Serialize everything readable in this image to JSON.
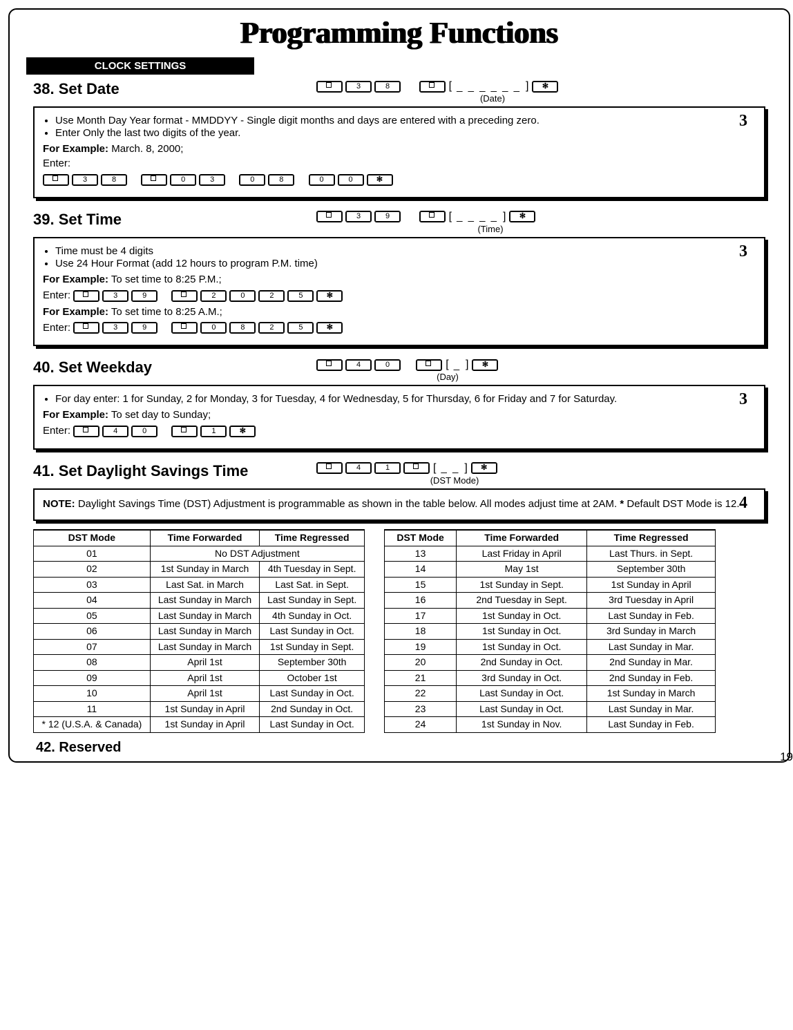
{
  "page": {
    "title": "Programming Functions",
    "section_bar": "CLOCK SETTINGS",
    "page_number": "19"
  },
  "fn38": {
    "title": "38. Set Date",
    "syntax_code": [
      "3",
      "8"
    ],
    "blanks": "_ _ _ _ _ _",
    "sub": "(Date)",
    "level": "3",
    "bullet1": "Use Month Day Year format - MMDDYY - Single digit months and days are entered with a preceding zero.",
    "bullet2": "Enter Only the last two digits of the year.",
    "ex_label": "For Example:",
    "ex_text": " March. 8, 2000;",
    "enter_word": "Enter:",
    "ex_seq": [
      [
        "3",
        "8"
      ],
      [
        "0",
        "3"
      ],
      [
        "0",
        "8"
      ],
      [
        "0",
        "0"
      ]
    ]
  },
  "fn39": {
    "title": "39. Set Time",
    "syntax_code": [
      "3",
      "9"
    ],
    "blanks": "_ _ _ _",
    "sub": "(Time)",
    "level": "3",
    "bullet1": "Time must be 4 digits",
    "bullet2": "Use 24 Hour Format (add 12 hours to program P.M. time)",
    "ex1_label": "For Example:",
    "ex1_text": "  To set time to 8:25 P.M.;",
    "ex1_seq": [
      "2",
      "0",
      "2",
      "5"
    ],
    "ex2_label": "For Example:",
    "ex2_text": "  To set time to 8:25 A.M.;",
    "ex2_seq": [
      "0",
      "8",
      "2",
      "5"
    ],
    "enter_word": "Enter:"
  },
  "fn40": {
    "title": "40. Set Weekday",
    "syntax_code": [
      "4",
      "0"
    ],
    "blanks": "_",
    "sub": "(Day)",
    "level": "3",
    "bullet1": "For day enter: 1 for Sunday, 2 for Monday, 3 for Tuesday, 4 for Wednesday, 5 for Thursday, 6 for Friday and  7 for Saturday.",
    "ex_label": "For Example:",
    "ex_text": "  To set day to Sunday;",
    "ex_seq": [
      "1"
    ],
    "enter_word": "Enter:"
  },
  "fn41": {
    "title": "41. Set Daylight Savings Time",
    "syntax_code": [
      "4",
      "1"
    ],
    "blanks": "_ _",
    "sub": "(DST Mode)",
    "level": "4",
    "note_label": "NOTE:",
    "note_text": " Daylight Savings Time (DST) Adjustment is programmable as shown in the table below. All modes adjust time at 2AM. ",
    "note_star": "*",
    "note_tail": " Default DST Mode is 12."
  },
  "dst_headers": {
    "c1": "DST Mode",
    "c2": "Time Forwarded",
    "c3": "Time Regressed"
  },
  "dst_left": [
    {
      "m": "01",
      "f": "No DST Adjustment",
      "r": "",
      "span": true
    },
    {
      "m": "02",
      "f": "1st Sunday in March",
      "r": "4th Tuesday in Sept."
    },
    {
      "m": "03",
      "f": "Last Sat. in March",
      "r": "Last Sat. in Sept."
    },
    {
      "m": "04",
      "f": "Last Sunday in March",
      "r": "Last Sunday in Sept."
    },
    {
      "m": "05",
      "f": "Last Sunday in March",
      "r": "4th Sunday in Oct."
    },
    {
      "m": "06",
      "f": "Last Sunday in March",
      "r": "Last Sunday in Oct."
    },
    {
      "m": "07",
      "f": "Last Sunday in March",
      "r": "1st Sunday in Sept."
    },
    {
      "m": "08",
      "f": "April 1st",
      "r": "September 30th"
    },
    {
      "m": "09",
      "f": "April 1st",
      "r": "October 1st"
    },
    {
      "m": "10",
      "f": "April 1st",
      "r": "Last Sunday in Oct."
    },
    {
      "m": "11",
      "f": "1st Sunday in April",
      "r": "2nd Sunday in Oct."
    },
    {
      "m": "* 12 (U.S.A. & Canada)",
      "f": "1st Sunday in April",
      "r": "Last Sunday in Oct."
    }
  ],
  "dst_right": [
    {
      "m": "13",
      "f": "Last Friday in April",
      "r": "Last Thurs. in Sept."
    },
    {
      "m": "14",
      "f": "May 1st",
      "r": "September 30th"
    },
    {
      "m": "15",
      "f": "1st Sunday in Sept.",
      "r": "1st Sunday in April"
    },
    {
      "m": "16",
      "f": "2nd Tuesday in Sept.",
      "r": "3rd Tuesday in April"
    },
    {
      "m": "17",
      "f": "1st Sunday in Oct.",
      "r": "Last Sunday in Feb."
    },
    {
      "m": "18",
      "f": "1st Sunday in Oct.",
      "r": "3rd Sunday in March"
    },
    {
      "m": "19",
      "f": "1st Sunday in Oct.",
      "r": "Last Sunday in Mar."
    },
    {
      "m": "20",
      "f": "2nd Sunday in Oct.",
      "r": "2nd Sunday in Mar."
    },
    {
      "m": "21",
      "f": "3rd Sunday in Oct.",
      "r": "2nd Sunday in Feb."
    },
    {
      "m": "22",
      "f": "Last Sunday in Oct.",
      "r": "1st Sunday in March"
    },
    {
      "m": "23",
      "f": "Last Sunday in Oct.",
      "r": "Last Sunday in Mar."
    },
    {
      "m": "24",
      "f": "1st Sunday in Nov.",
      "r": "Last Sunday in Feb."
    }
  ],
  "fn42": {
    "title": "42. Reserved"
  }
}
